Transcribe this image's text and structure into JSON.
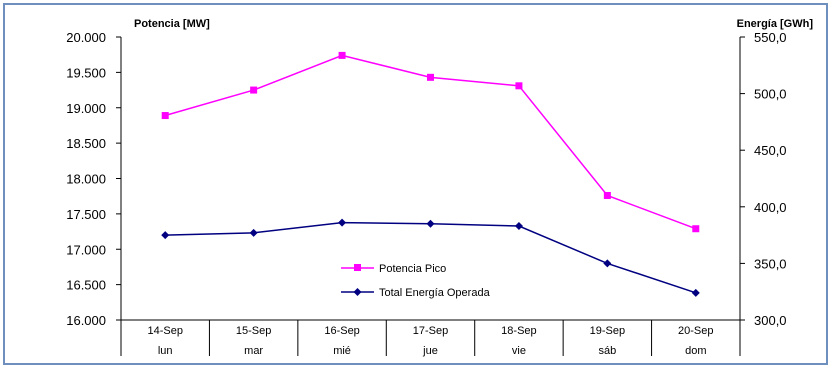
{
  "chart_data": {
    "type": "line",
    "y_left_title": "Potencia [MW]",
    "y_right_title": "Energía [GWh]",
    "x_dates": [
      "14-Sep",
      "15-Sep",
      "16-Sep",
      "17-Sep",
      "18-Sep",
      "19-Sep",
      "20-Sep"
    ],
    "x_days": [
      "lun",
      "mar",
      "mié",
      "jue",
      "vie",
      "sáb",
      "dom"
    ],
    "y_left_ticks": [
      "20.000",
      "19.500",
      "19.000",
      "18.500",
      "18.000",
      "17.500",
      "17.000",
      "16.500",
      "16.000"
    ],
    "y_right_ticks": [
      "550,0",
      "500,0",
      "450,0",
      "400,0",
      "350,0",
      "300,0"
    ],
    "ylim_left": [
      16000,
      20000
    ],
    "ylim_right": [
      300,
      550
    ],
    "series": [
      {
        "name": "Potencia Pico",
        "axis": "left",
        "color": "#ff00ff",
        "marker": "square",
        "values": [
          18890,
          19250,
          19740,
          19430,
          19310,
          17760,
          17290
        ]
      },
      {
        "name": "Total Energía Operada",
        "axis": "right",
        "color": "#000080",
        "marker": "diamond",
        "values": [
          375,
          377,
          386,
          385,
          383,
          350,
          324
        ]
      }
    ],
    "legend_position": "bottom-center",
    "grid": false
  }
}
